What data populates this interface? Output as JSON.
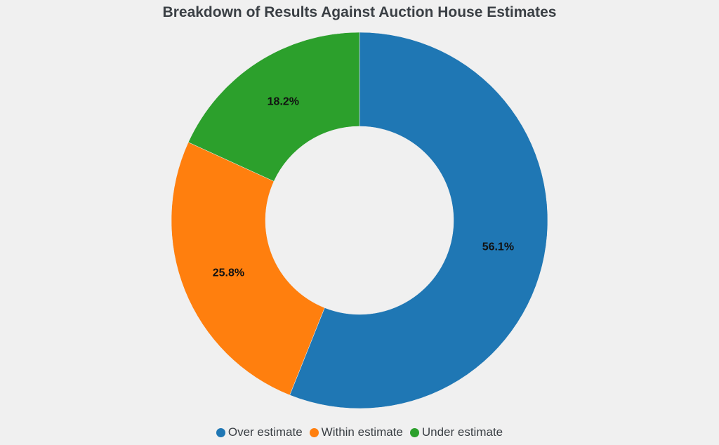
{
  "chart_data": {
    "type": "pie",
    "title": "Breakdown of Results Against Auction House Estimates",
    "categories": [
      "Over estimate",
      "Within estimate",
      "Under estimate"
    ],
    "values": [
      56.1,
      25.8,
      18.2
    ],
    "labels": [
      "56.1%",
      "25.8%",
      "18.2%"
    ],
    "colors": [
      "#1f77b4",
      "#ff7f0e",
      "#2ca02c"
    ],
    "donut": true,
    "legend_position": "bottom"
  }
}
